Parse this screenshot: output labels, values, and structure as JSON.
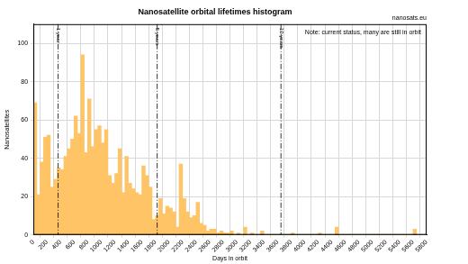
{
  "chart_data": {
    "type": "histogram",
    "title": "Nanosatellite orbital lifetimes histogram",
    "source": "nanosats.eu",
    "note": "Note: current status, many are still in orbit",
    "x_label": "Days in orbit",
    "y_label": "Nanosatellites",
    "bins": [
      0,
      50,
      100,
      150,
      200,
      250,
      300,
      350,
      400,
      450,
      500,
      550,
      600,
      650,
      700,
      750,
      800,
      850,
      900,
      950,
      1000,
      1050,
      1100,
      1150,
      1200,
      1250,
      1300,
      1350,
      1400,
      1450,
      1500,
      1550,
      1600,
      1650,
      1700,
      1750,
      1800,
      1850,
      1900,
      1950,
      2000,
      2050,
      2100,
      2150,
      2200,
      2250,
      2300,
      2350,
      2400,
      2450,
      2500,
      2550,
      2600,
      2650,
      2700,
      2750,
      2800,
      2850,
      2900,
      2950,
      3000,
      3050,
      3100,
      3150,
      3200,
      3250,
      3300,
      3350,
      3400,
      3450,
      3500,
      3550,
      3600,
      3650,
      3700,
      3750,
      3800,
      3850,
      3900,
      3950,
      4000,
      4050,
      4100,
      4150,
      4200,
      4250,
      4300,
      4350,
      4400,
      4450,
      4500,
      4550,
      4600,
      4650,
      4700,
      4750,
      4800,
      4850,
      4900,
      4950,
      5000,
      5050,
      5100,
      5150,
      5200,
      5250,
      5300,
      5350,
      5400,
      5450,
      5500,
      5550,
      5600,
      5650,
      5700,
      5750,
      5800
    ],
    "values": [
      69,
      21,
      38,
      51,
      52,
      25,
      29,
      35,
      34,
      41,
      45,
      50,
      62,
      53,
      94,
      43,
      71,
      46,
      55,
      57,
      48,
      55,
      31,
      27,
      32,
      45,
      22,
      41,
      27,
      24,
      22,
      21,
      36,
      31,
      25,
      8,
      10,
      19,
      11,
      15,
      14,
      12,
      4,
      37,
      19,
      12,
      9,
      10,
      17,
      6,
      5,
      2,
      3,
      3,
      1,
      2,
      1,
      1,
      2,
      0,
      1,
      0,
      4,
      0,
      1,
      0,
      0,
      2,
      0,
      0,
      0,
      0,
      0,
      0,
      0,
      0,
      1,
      0,
      0,
      0,
      0,
      0,
      0,
      0,
      1,
      0,
      0,
      0,
      0,
      4,
      0,
      0,
      0,
      0,
      0,
      0,
      0,
      0,
      0,
      0,
      0,
      0,
      0,
      0,
      0,
      0,
      0,
      0,
      0,
      0,
      0,
      0,
      3,
      0,
      0,
      0
    ],
    "color": "#ffc466",
    "annotations": [
      {
        "x": 365,
        "label": "1 year"
      },
      {
        "x": 1826,
        "label": "5 years"
      },
      {
        "x": 3652,
        "label": "10 years"
      }
    ],
    "xlim": [
      0,
      5800
    ],
    "xticks": [
      0,
      200,
      400,
      600,
      800,
      1000,
      1200,
      1400,
      1600,
      1800,
      2000,
      2200,
      2400,
      2600,
      2800,
      3000,
      3200,
      3400,
      3600,
      3800,
      4000,
      4200,
      4400,
      4600,
      4800,
      5000,
      5200,
      5400,
      5600,
      5800
    ],
    "ylim": [
      0,
      110
    ],
    "yticks": [
      0,
      20,
      40,
      60,
      80,
      100
    ],
    "grid": true
  }
}
